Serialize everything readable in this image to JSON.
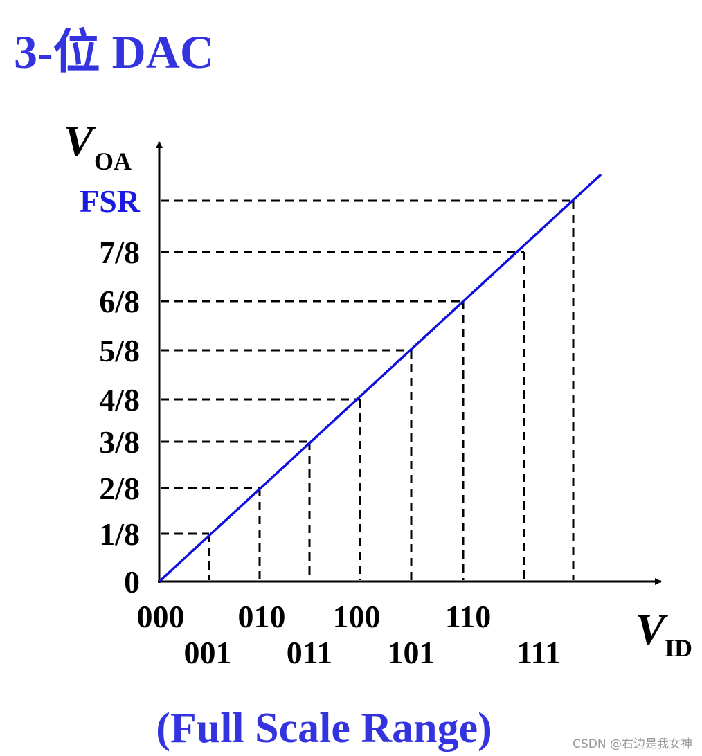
{
  "title": "3-位 DAC",
  "y_axis": {
    "symbol": "V",
    "subscript": "OA"
  },
  "x_axis": {
    "symbol": "V",
    "subscript": "ID"
  },
  "y_labels": [
    "0",
    "1/8",
    "2/8",
    "3/8",
    "4/8",
    "5/8",
    "6/8",
    "7/8",
    "FSR"
  ],
  "x_labels": [
    "000",
    "001",
    "010",
    "011",
    "100",
    "101",
    "110",
    "111"
  ],
  "footer": "(Full Scale Range)",
  "watermark": "CSDN @右边是我女神"
}
